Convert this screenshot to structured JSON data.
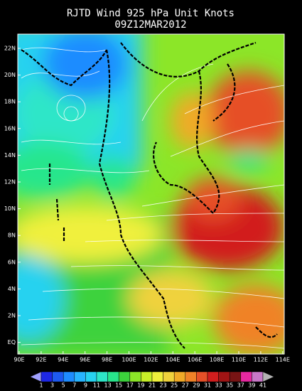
{
  "header": {
    "title": "RJTD Wind 925 hPa Unit Knots",
    "subtitle": "09Z12MAR2012"
  },
  "lat_ticks": [
    "22N",
    "20N",
    "18N",
    "16N",
    "14N",
    "12N",
    "10N",
    "8N",
    "6N",
    "4N",
    "2N",
    "EQ"
  ],
  "lon_ticks": [
    "90E",
    "92E",
    "94E",
    "96E",
    "98E",
    "100E",
    "102E",
    "104E",
    "106E",
    "108E",
    "110E",
    "112E",
    "114E"
  ],
  "colorbar": {
    "labels": [
      "1",
      "3",
      "5",
      "7",
      "9",
      "11",
      "13",
      "15",
      "17",
      "19",
      "21",
      "23",
      "25",
      "27",
      "29",
      "31",
      "33",
      "35",
      "37",
      "39",
      "41"
    ],
    "colors": [
      "#a0a0ff",
      "#1e28e6",
      "#1e5af0",
      "#1e8cff",
      "#28b4ff",
      "#28d2f0",
      "#2ee6c8",
      "#28e68c",
      "#3cd23c",
      "#8ce628",
      "#c8f028",
      "#f0f03c",
      "#f0d23c",
      "#f0aa28",
      "#f08228",
      "#e65028",
      "#d21e1e",
      "#a01414",
      "#781414",
      "#e628a0",
      "#c878c8",
      "#b4b4b4"
    ]
  }
}
